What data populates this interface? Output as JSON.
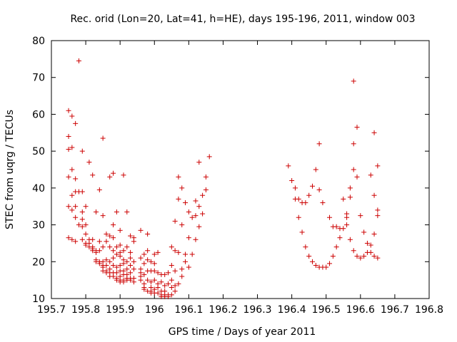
{
  "chart_data": {
    "type": "scatter",
    "title": "Rec. orid (Lon=20, Lat=41, h=HE), days 195-196, 2011, window 003",
    "xlabel": "GPS time / Days of year 2011",
    "ylabel": "STEC from uqrg / TECUs",
    "xlim": [
      195.7,
      196.8
    ],
    "ylim": [
      10,
      80
    ],
    "xticks": [
      "195.7",
      "195.8",
      "195.9",
      "196",
      "196.1",
      "196.2",
      "196.3",
      "196.4",
      "196.5",
      "196.6",
      "196.7",
      "196.8"
    ],
    "xtick_values": [
      195.7,
      195.8,
      195.9,
      196.0,
      196.1,
      196.2,
      196.3,
      196.4,
      196.5,
      196.6,
      196.7,
      196.8
    ],
    "yticks": [
      "10",
      "20",
      "30",
      "40",
      "50",
      "60",
      "70",
      "80"
    ],
    "ytick_values": [
      10,
      20,
      30,
      40,
      50,
      60,
      70,
      80
    ],
    "grid": false,
    "marker": "plus",
    "color": "#cc0000",
    "series": [
      {
        "points": [
          [
            195.75,
            61
          ],
          [
            195.75,
            54
          ],
          [
            195.75,
            50.5
          ],
          [
            195.75,
            43
          ],
          [
            195.75,
            35
          ],
          [
            195.75,
            26.5
          ],
          [
            195.76,
            59.5
          ],
          [
            195.76,
            51
          ],
          [
            195.76,
            45
          ],
          [
            195.76,
            38
          ],
          [
            195.76,
            34
          ],
          [
            195.76,
            26
          ],
          [
            195.77,
            57.5
          ],
          [
            195.77,
            42.5
          ],
          [
            195.77,
            39
          ],
          [
            195.77,
            35
          ],
          [
            195.77,
            32
          ],
          [
            195.77,
            25.5
          ],
          [
            195.78,
            74.5
          ],
          [
            195.78,
            39
          ],
          [
            195.78,
            30
          ],
          [
            195.79,
            50
          ],
          [
            195.79,
            39
          ],
          [
            195.79,
            33.5
          ],
          [
            195.79,
            31.5
          ],
          [
            195.79,
            29.5
          ],
          [
            195.79,
            26
          ],
          [
            195.8,
            35
          ],
          [
            195.8,
            30
          ],
          [
            195.8,
            27.5
          ],
          [
            195.8,
            25
          ],
          [
            195.8,
            24.5
          ],
          [
            195.81,
            47
          ],
          [
            195.81,
            26
          ],
          [
            195.81,
            25
          ],
          [
            195.81,
            24
          ],
          [
            195.82,
            43.5
          ],
          [
            195.82,
            26
          ],
          [
            195.82,
            24
          ],
          [
            195.82,
            23.5
          ],
          [
            195.82,
            23
          ],
          [
            195.83,
            33.5
          ],
          [
            195.83,
            23
          ],
          [
            195.83,
            22.5
          ],
          [
            195.83,
            20.5
          ],
          [
            195.83,
            20
          ],
          [
            195.84,
            39.5
          ],
          [
            195.84,
            25.5
          ],
          [
            195.84,
            23
          ],
          [
            195.84,
            20
          ],
          [
            195.84,
            19.5
          ],
          [
            195.85,
            53.5
          ],
          [
            195.85,
            32.5
          ],
          [
            195.85,
            24
          ],
          [
            195.85,
            20
          ],
          [
            195.85,
            19
          ],
          [
            195.85,
            18.5
          ],
          [
            195.85,
            17.5
          ],
          [
            195.86,
            27.5
          ],
          [
            195.86,
            25.5
          ],
          [
            195.86,
            20.5
          ],
          [
            195.86,
            19
          ],
          [
            195.86,
            17.5
          ],
          [
            195.86,
            17
          ],
          [
            195.87,
            43
          ],
          [
            195.87,
            27
          ],
          [
            195.87,
            24
          ],
          [
            195.87,
            20
          ],
          [
            195.87,
            18
          ],
          [
            195.87,
            17
          ],
          [
            195.87,
            16
          ],
          [
            195.88,
            44
          ],
          [
            195.88,
            30
          ],
          [
            195.88,
            26.5
          ],
          [
            195.88,
            23
          ],
          [
            195.88,
            21
          ],
          [
            195.88,
            19
          ],
          [
            195.88,
            17
          ],
          [
            195.88,
            16
          ],
          [
            195.89,
            33.5
          ],
          [
            195.89,
            24
          ],
          [
            195.89,
            22
          ],
          [
            195.89,
            18.5
          ],
          [
            195.89,
            17
          ],
          [
            195.89,
            15.5
          ],
          [
            195.89,
            15
          ],
          [
            195.9,
            28.5
          ],
          [
            195.9,
            24.5
          ],
          [
            195.9,
            22.5
          ],
          [
            195.9,
            21.5
          ],
          [
            195.9,
            19
          ],
          [
            195.9,
            17.5
          ],
          [
            195.9,
            16
          ],
          [
            195.9,
            15
          ],
          [
            195.9,
            14.5
          ],
          [
            195.91,
            43.5
          ],
          [
            195.91,
            23
          ],
          [
            195.91,
            20.5
          ],
          [
            195.91,
            19.5
          ],
          [
            195.91,
            17.5
          ],
          [
            195.91,
            16.5
          ],
          [
            195.91,
            15
          ],
          [
            195.91,
            14.5
          ],
          [
            195.92,
            33.5
          ],
          [
            195.92,
            24
          ],
          [
            195.92,
            20
          ],
          [
            195.92,
            18
          ],
          [
            195.92,
            16.5
          ],
          [
            195.92,
            15.5
          ],
          [
            195.92,
            15
          ],
          [
            195.93,
            27
          ],
          [
            195.93,
            22.5
          ],
          [
            195.93,
            21
          ],
          [
            195.93,
            19
          ],
          [
            195.93,
            17
          ],
          [
            195.93,
            15.5
          ],
          [
            195.93,
            15
          ],
          [
            195.94,
            26.5
          ],
          [
            195.94,
            25.5
          ],
          [
            195.94,
            20
          ],
          [
            195.94,
            18
          ],
          [
            195.94,
            15.5
          ],
          [
            195.94,
            14.5
          ],
          [
            195.96,
            28.5
          ],
          [
            195.96,
            21
          ],
          [
            195.96,
            18
          ],
          [
            195.96,
            17
          ],
          [
            195.96,
            16
          ],
          [
            195.96,
            15
          ],
          [
            195.97,
            22
          ],
          [
            195.97,
            19.5
          ],
          [
            195.97,
            16.5
          ],
          [
            195.97,
            14
          ],
          [
            195.97,
            13
          ],
          [
            195.97,
            12.5
          ],
          [
            195.98,
            27.5
          ],
          [
            195.98,
            23
          ],
          [
            195.98,
            20.5
          ],
          [
            195.98,
            17.5
          ],
          [
            195.98,
            15
          ],
          [
            195.98,
            12
          ],
          [
            195.99,
            20
          ],
          [
            195.99,
            17.5
          ],
          [
            195.99,
            14.5
          ],
          [
            195.99,
            13
          ],
          [
            195.99,
            12
          ],
          [
            195.99,
            11.5
          ],
          [
            196.0,
            22
          ],
          [
            196.0,
            19.5
          ],
          [
            196.0,
            17.5
          ],
          [
            196.0,
            15
          ],
          [
            196.0,
            12.5
          ],
          [
            196.0,
            11.5
          ],
          [
            196.01,
            22.5
          ],
          [
            196.01,
            17
          ],
          [
            196.01,
            14
          ],
          [
            196.01,
            13
          ],
          [
            196.01,
            11.5
          ],
          [
            196.02,
            16.5
          ],
          [
            196.02,
            14.5
          ],
          [
            196.02,
            12
          ],
          [
            196.02,
            11
          ],
          [
            196.02,
            10.5
          ],
          [
            196.03,
            16.5
          ],
          [
            196.03,
            13.5
          ],
          [
            196.03,
            12
          ],
          [
            196.03,
            11
          ],
          [
            196.03,
            10.5
          ],
          [
            196.04,
            17
          ],
          [
            196.04,
            14
          ],
          [
            196.04,
            11
          ],
          [
            196.04,
            10.5
          ],
          [
            196.05,
            24
          ],
          [
            196.05,
            19
          ],
          [
            196.05,
            15
          ],
          [
            196.05,
            13
          ],
          [
            196.05,
            11
          ],
          [
            196.06,
            31
          ],
          [
            196.06,
            23
          ],
          [
            196.06,
            17.5
          ],
          [
            196.06,
            13.5
          ],
          [
            196.06,
            12
          ],
          [
            196.07,
            43
          ],
          [
            196.07,
            37
          ],
          [
            196.07,
            22.5
          ],
          [
            196.07,
            14
          ],
          [
            196.08,
            40
          ],
          [
            196.08,
            30
          ],
          [
            196.08,
            18
          ],
          [
            196.08,
            16
          ],
          [
            196.09,
            36
          ],
          [
            196.09,
            22
          ],
          [
            196.09,
            20
          ],
          [
            196.1,
            33.5
          ],
          [
            196.1,
            26.5
          ],
          [
            196.1,
            18.5
          ],
          [
            196.11,
            32
          ],
          [
            196.11,
            22
          ],
          [
            196.12,
            36.5
          ],
          [
            196.12,
            32.5
          ],
          [
            196.12,
            26
          ],
          [
            196.13,
            47
          ],
          [
            196.13,
            35
          ],
          [
            196.13,
            29.5
          ],
          [
            196.14,
            38
          ],
          [
            196.14,
            33
          ],
          [
            196.15,
            43
          ],
          [
            196.15,
            39.5
          ],
          [
            196.16,
            48.5
          ],
          [
            196.39,
            46
          ],
          [
            196.4,
            42
          ],
          [
            196.41,
            40
          ],
          [
            196.41,
            37
          ],
          [
            196.42,
            37
          ],
          [
            196.42,
            32
          ],
          [
            196.43,
            36
          ],
          [
            196.43,
            28
          ],
          [
            196.44,
            36
          ],
          [
            196.44,
            24
          ],
          [
            196.45,
            38
          ],
          [
            196.45,
            21.5
          ],
          [
            196.46,
            40.5
          ],
          [
            196.46,
            20
          ],
          [
            196.47,
            45
          ],
          [
            196.47,
            19
          ],
          [
            196.48,
            52
          ],
          [
            196.48,
            39.5
          ],
          [
            196.48,
            18.5
          ],
          [
            196.49,
            36
          ],
          [
            196.49,
            18.5
          ],
          [
            196.5,
            18.5
          ],
          [
            196.51,
            32
          ],
          [
            196.51,
            19.5
          ],
          [
            196.52,
            29.5
          ],
          [
            196.52,
            21.5
          ],
          [
            196.53,
            29.5
          ],
          [
            196.53,
            24
          ],
          [
            196.54,
            29
          ],
          [
            196.54,
            26.5
          ],
          [
            196.55,
            37
          ],
          [
            196.55,
            29
          ],
          [
            196.56,
            33
          ],
          [
            196.56,
            32
          ],
          [
            196.56,
            30
          ],
          [
            196.57,
            40
          ],
          [
            196.57,
            37.5
          ],
          [
            196.57,
            26
          ],
          [
            196.58,
            69
          ],
          [
            196.58,
            52
          ],
          [
            196.58,
            45
          ],
          [
            196.58,
            23
          ],
          [
            196.59,
            56.5
          ],
          [
            196.59,
            43
          ],
          [
            196.59,
            21.5
          ],
          [
            196.6,
            32.5
          ],
          [
            196.6,
            21
          ],
          [
            196.61,
            28
          ],
          [
            196.61,
            21.5
          ],
          [
            196.62,
            25
          ],
          [
            196.62,
            22.5
          ],
          [
            196.63,
            43.5
          ],
          [
            196.63,
            24.5
          ],
          [
            196.63,
            22.5
          ],
          [
            196.64,
            55
          ],
          [
            196.64,
            38
          ],
          [
            196.64,
            27.5
          ],
          [
            196.64,
            21.5
          ],
          [
            196.65,
            46
          ],
          [
            196.65,
            34
          ],
          [
            196.65,
            32.5
          ],
          [
            196.65,
            21
          ]
        ]
      }
    ]
  }
}
